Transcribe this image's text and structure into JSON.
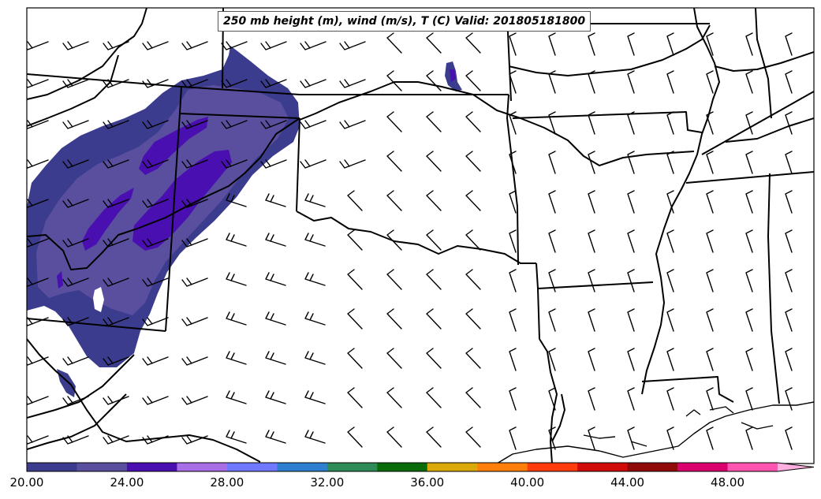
{
  "title": "250 mb height (m), wind (m/s), T (C) Valid: 201805181800",
  "colorbar": {
    "tick_labels": [
      "20.00",
      "24.00",
      "28.00",
      "32.00",
      "36.00",
      "40.00",
      "44.00",
      "48.00"
    ],
    "min": 20,
    "max": 52,
    "step": 2,
    "colors": [
      "#3c3c8e",
      "#5a4f9f",
      "#4a0fb0",
      "#a76ee6",
      "#6f78ff",
      "#2e7fcf",
      "#2e8b57",
      "#0a6b0a",
      "#dbaa0a",
      "#ff7f0a",
      "#ff3c0a",
      "#d10a0a",
      "#900a0a",
      "#d9006e",
      "#ff55b0",
      "#ffaee0"
    ]
  },
  "temperature_shading": {
    "regions": [
      "Colorado / northeast New Mexico / western Kansas",
      "small patch in Nebraska"
    ],
    "colors": [
      "#3c3c8e",
      "#5a4f9f",
      "#4a0fb0"
    ]
  },
  "wind_barbs": {
    "note_colors": {
      "barb": "#000000"
    }
  }
}
